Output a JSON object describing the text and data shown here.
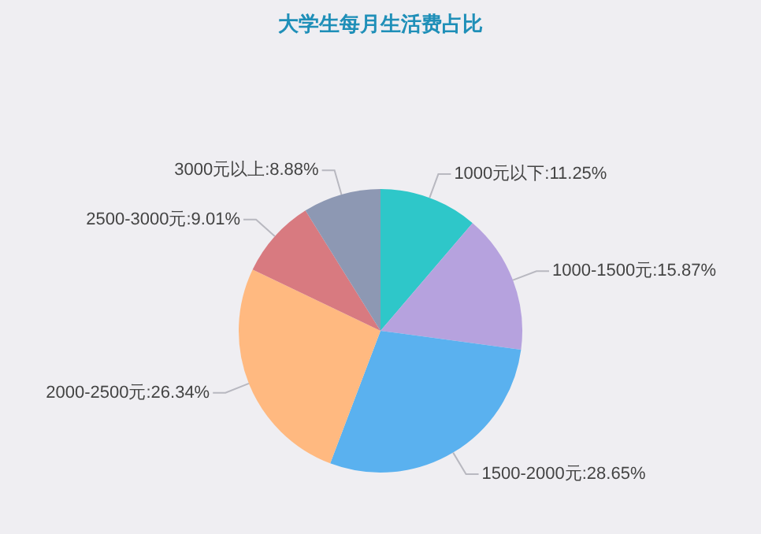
{
  "chart_data": {
    "type": "pie",
    "title": "大学生每月生活费占比",
    "categories": [
      "1000元以下:11.25%",
      "1000-1500元:15.87%",
      "1500-2000元:28.65%",
      "2000-2500元:26.34%",
      "2500-3000元:9.01%",
      "3000元以上:8.88%"
    ],
    "values": [
      11.25,
      15.87,
      28.65,
      26.34,
      9.01,
      8.88
    ],
    "colors": [
      "#2ec7c9",
      "#b6a2de",
      "#5ab1ef",
      "#ffb980",
      "#d87a80",
      "#8d98b3"
    ],
    "legend": false
  }
}
